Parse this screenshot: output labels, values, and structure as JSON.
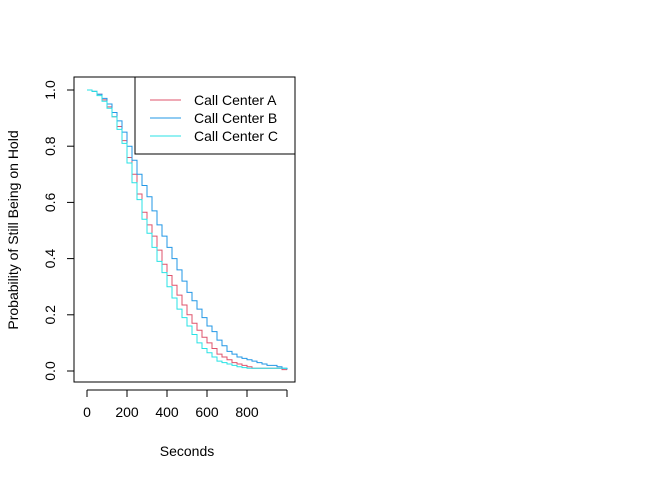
{
  "chart_data": {
    "type": "line",
    "title": "",
    "xlabel": "Seconds",
    "ylabel": "Probability of Still Being on Hold",
    "xlim": [
      0,
      1000
    ],
    "ylim": [
      0,
      1
    ],
    "x_ticks": [
      0,
      200,
      400,
      600,
      800
    ],
    "x_tick_labels": [
      "0",
      "200",
      "400",
      "600",
      "800"
    ],
    "y_ticks": [
      0.0,
      0.2,
      0.4,
      0.6,
      0.8,
      1.0
    ],
    "y_tick_labels": [
      "0.0",
      "0.2",
      "0.4",
      "0.6",
      "0.8",
      "1.0"
    ],
    "grid": false,
    "legend_position": "top-right",
    "series": [
      {
        "name": "Call Center A",
        "color": "#DF536B",
        "x": [
          0,
          25,
          50,
          75,
          100,
          125,
          150,
          175,
          200,
          225,
          250,
          275,
          300,
          325,
          350,
          375,
          400,
          425,
          450,
          475,
          500,
          525,
          550,
          575,
          600,
          625,
          650,
          675,
          700,
          725,
          750,
          775,
          800,
          825,
          850,
          875,
          900,
          925,
          950,
          975,
          1000
        ],
        "values": [
          1.0,
          0.995,
          0.985,
          0.965,
          0.94,
          0.905,
          0.87,
          0.82,
          0.76,
          0.7,
          0.63,
          0.565,
          0.52,
          0.48,
          0.43,
          0.38,
          0.34,
          0.305,
          0.27,
          0.235,
          0.2,
          0.17,
          0.145,
          0.12,
          0.1,
          0.08,
          0.06,
          0.05,
          0.04,
          0.03,
          0.025,
          0.02,
          0.015,
          0.01,
          0.01,
          0.01,
          0.01,
          0.01,
          0.01,
          0.005,
          0.005
        ]
      },
      {
        "name": "Call Center B",
        "color": "#2297E6",
        "x": [
          0,
          25,
          50,
          75,
          100,
          125,
          150,
          175,
          200,
          225,
          250,
          275,
          300,
          325,
          350,
          375,
          400,
          425,
          450,
          475,
          500,
          525,
          550,
          575,
          600,
          625,
          650,
          675,
          700,
          725,
          750,
          775,
          800,
          825,
          850,
          875,
          900,
          925,
          950,
          975,
          1000
        ],
        "values": [
          1.0,
          0.995,
          0.985,
          0.97,
          0.95,
          0.92,
          0.89,
          0.85,
          0.8,
          0.75,
          0.7,
          0.66,
          0.62,
          0.57,
          0.52,
          0.48,
          0.44,
          0.4,
          0.36,
          0.32,
          0.28,
          0.25,
          0.22,
          0.19,
          0.16,
          0.14,
          0.11,
          0.09,
          0.07,
          0.06,
          0.05,
          0.045,
          0.04,
          0.035,
          0.03,
          0.025,
          0.02,
          0.02,
          0.015,
          0.01,
          0.005
        ]
      },
      {
        "name": "Call Center C",
        "color": "#28E2E5",
        "x": [
          0,
          25,
          50,
          75,
          100,
          125,
          150,
          175,
          200,
          225,
          250,
          275,
          300,
          325,
          350,
          375,
          400,
          425,
          450,
          475,
          500,
          525,
          550,
          575,
          600,
          625,
          650,
          675,
          700,
          725,
          750,
          775,
          800,
          825,
          850,
          875,
          900,
          925,
          950,
          975,
          1000
        ],
        "values": [
          1.0,
          0.995,
          0.98,
          0.96,
          0.935,
          0.905,
          0.86,
          0.81,
          0.74,
          0.67,
          0.61,
          0.54,
          0.49,
          0.44,
          0.39,
          0.35,
          0.3,
          0.26,
          0.22,
          0.19,
          0.16,
          0.13,
          0.1,
          0.08,
          0.065,
          0.05,
          0.035,
          0.03,
          0.025,
          0.02,
          0.015,
          0.012,
          0.01,
          0.01,
          0.01,
          0.01,
          0.01,
          0.01,
          0.01,
          0.01,
          0.01
        ]
      }
    ]
  }
}
